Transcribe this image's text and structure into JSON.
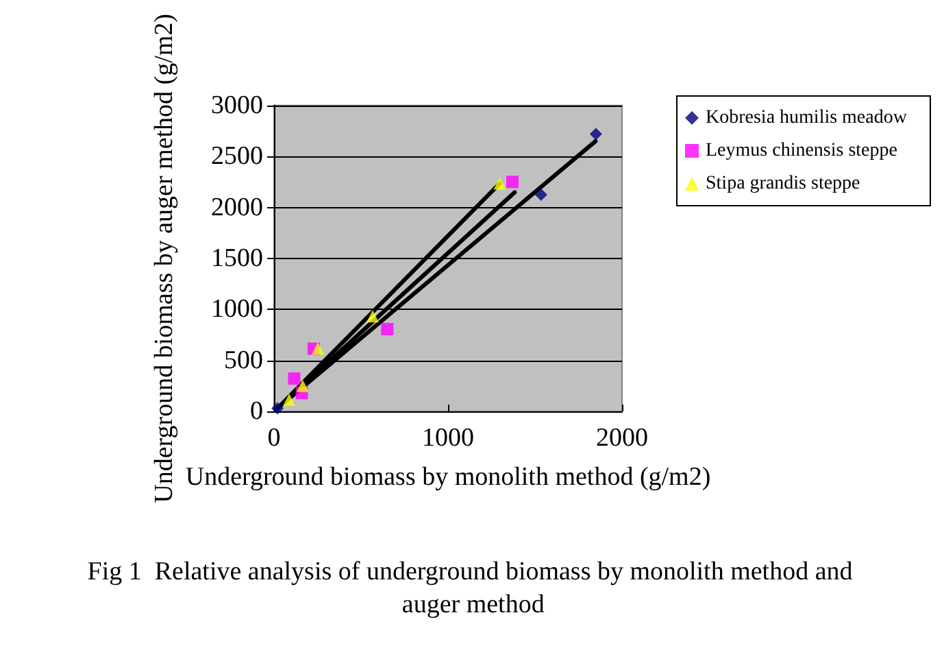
{
  "chart_data": {
    "type": "scatter",
    "title": "Fig 1  Relative analysis of underground biomass by monolith method and auger method",
    "xlabel": "Underground biomass by monolith method (g/m2)",
    "ylabel": "Underground biomass by auger method (g/m2)",
    "series": [
      {
        "name": "Kobresia humilis meadow",
        "color": "#000080",
        "marker": "diamond",
        "x": [
          20,
          1850,
          1535
        ],
        "values": [
          30,
          2720,
          2125
        ]
      },
      {
        "name": "Leymus chinensis steppe",
        "color": "#ff00ff",
        "marker": "square",
        "x": [
          116,
          160,
          228,
          651,
          1370
        ],
        "values": [
          322,
          180,
          614,
          807,
          2250
        ]
      },
      {
        "name": "Stipa grandis steppe",
        "color": "#ffff00",
        "marker": "triangle",
        "x": [
          87,
          165,
          252,
          567,
          1297
        ],
        "values": [
          114,
          250,
          617,
          932,
          2235
        ]
      },
      {
        "type": "line",
        "color": "#000000",
        "marker": "none",
        "x": [
          20,
          1848
        ],
        "values": [
          30,
          2650
        ]
      },
      {
        "type": "line",
        "color": "#000000",
        "marker": "none",
        "x": [
          20,
          1383
        ],
        "values": [
          30,
          2148
        ]
      },
      {
        "type": "line",
        "color": "#000000",
        "marker": "none",
        "x": [
          20,
          1297
        ],
        "values": [
          30,
          2235
        ]
      }
    ],
    "xlim": [
      0,
      2000
    ],
    "xticks": [
      0,
      1000,
      2000
    ],
    "ylim": [
      0,
      3000
    ],
    "yticks": [
      0,
      500,
      1000,
      1500,
      2000,
      2500,
      3000
    ],
    "grid": "y",
    "legend": "right"
  }
}
